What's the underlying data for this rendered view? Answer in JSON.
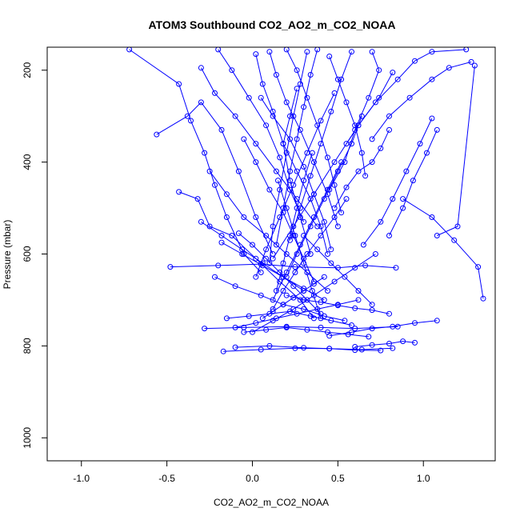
{
  "chart_data": {
    "type": "line",
    "title": "ATOM3 Southbound CO2_AO2_m_CO2_NOAA",
    "xlabel": "CO2_AO2_m_CO2_NOAA",
    "ylabel": "Pressure (mbar)",
    "xlim": [
      -1.2,
      1.42
    ],
    "ylim": [
      1050,
      150
    ],
    "y_reversed": true,
    "x_ticks": [
      -1.0,
      -0.5,
      0.0,
      0.5,
      1.0
    ],
    "x_tick_labels": [
      "-1.0",
      "-0.5",
      "0.0",
      "0.5",
      "1.0"
    ],
    "y_ticks": [
      200,
      400,
      600,
      800,
      1000
    ],
    "y_tick_labels": [
      "200",
      "400",
      "600",
      "800",
      "1000"
    ],
    "marker": "open-circle",
    "grid": false,
    "legend": "none",
    "colors": {
      "series": "#0000ff",
      "axis": "#000000",
      "background": "#ffffff"
    },
    "series": [
      {
        "x": [
          -0.72,
          -0.43,
          -0.36,
          -0.28,
          -0.22,
          -0.15,
          -0.05,
          0.05
        ],
        "y": [
          155,
          230,
          310,
          380,
          450,
          520,
          600,
          640
        ]
      },
      {
        "x": [
          -0.56,
          -0.38,
          -0.3,
          -0.18,
          -0.08,
          0.02,
          0.12
        ],
        "y": [
          340,
          300,
          270,
          330,
          420,
          520,
          600
        ]
      },
      {
        "x": [
          -0.43,
          -0.32,
          -0.25,
          -0.12,
          0.02,
          0.16,
          0.28,
          0.36
        ],
        "y": [
          465,
          480,
          540,
          560,
          610,
          660,
          700,
          740
        ]
      },
      {
        "x": [
          -0.48,
          -0.2,
          0.05,
          0.25,
          0.5,
          0.66,
          0.84
        ],
        "y": [
          628,
          625,
          622,
          628,
          630,
          625,
          630
        ]
      },
      {
        "x": [
          -0.28,
          -0.05,
          0.2,
          0.4,
          0.6,
          0.85
        ],
        "y": [
          762,
          760,
          758,
          760,
          762,
          758
        ]
      },
      {
        "x": [
          -0.17,
          0.05,
          0.25,
          0.45,
          0.64,
          0.82
        ],
        "y": [
          812,
          808,
          805,
          806,
          808,
          805
        ]
      },
      {
        "x": [
          -0.1,
          0.1,
          0.3,
          0.45,
          0.6,
          0.75
        ],
        "y": [
          803,
          800,
          804,
          806,
          809,
          810
        ]
      },
      {
        "x": [
          1.08,
          1.2,
          1.3
        ],
        "y": [
          560,
          540,
          190
        ]
      },
      {
        "x": [
          1.35,
          1.32,
          1.18,
          1.05,
          0.88
        ],
        "y": [
          697,
          628,
          570,
          520,
          480
        ]
      },
      {
        "x": [
          1.08,
          0.95,
          0.82,
          0.7,
          0.58,
          0.45
        ],
        "y": [
          745,
          750,
          758,
          762,
          770,
          778
        ]
      },
      {
        "x": [
          0.95,
          0.88,
          0.8,
          0.7,
          0.6
        ],
        "y": [
          793,
          790,
          795,
          798,
          802
        ]
      },
      {
        "x": [
          1.25,
          1.05,
          0.95,
          0.85,
          0.72,
          0.62,
          0.55
        ],
        "y": [
          155,
          160,
          180,
          220,
          270,
          320,
          360
        ]
      },
      {
        "x": [
          1.28,
          1.15,
          1.05,
          0.92,
          0.8,
          0.7
        ],
        "y": [
          182,
          195,
          220,
          260,
          300,
          350
        ]
      },
      {
        "x": [
          1.08,
          1.02,
          0.94,
          0.88,
          0.8
        ],
        "y": [
          330,
          380,
          440,
          500,
          560
        ]
      },
      {
        "x": [
          1.05,
          0.98,
          0.9,
          0.82,
          0.75,
          0.65
        ],
        "y": [
          305,
          360,
          420,
          480,
          530,
          580
        ]
      },
      {
        "x": [
          0.8,
          0.75,
          0.7,
          0.62,
          0.55,
          0.48
        ],
        "y": [
          330,
          370,
          400,
          420,
          455,
          500
        ]
      },
      {
        "x": [
          0.7,
          0.74,
          0.68,
          0.6,
          0.54,
          0.45
        ],
        "y": [
          160,
          200,
          260,
          330,
          400,
          460
        ]
      },
      {
        "x": [
          0.45,
          0.5,
          0.55,
          0.6,
          0.64,
          0.66
        ],
        "y": [
          170,
          220,
          270,
          320,
          380,
          430
        ]
      },
      {
        "x": [
          0.82,
          0.74,
          0.62,
          0.48,
          0.36,
          0.24,
          0.12
        ],
        "y": [
          205,
          260,
          320,
          400,
          470,
          540,
          610
        ]
      },
      {
        "x": [
          0.1,
          0.14,
          0.2,
          0.28,
          0.36,
          0.44,
          0.5
        ],
        "y": [
          160,
          210,
          270,
          330,
          400,
          470,
          540
        ]
      },
      {
        "x": [
          -0.2,
          -0.12,
          -0.02,
          0.08,
          0.16,
          0.22,
          0.3
        ],
        "y": [
          155,
          200,
          260,
          320,
          390,
          460,
          530
        ]
      },
      {
        "x": [
          0.02,
          0.06,
          0.12,
          0.18,
          0.22,
          0.28,
          0.34
        ],
        "y": [
          165,
          230,
          290,
          360,
          440,
          520,
          600
        ]
      },
      {
        "x": [
          0.32,
          0.28,
          0.24,
          0.2,
          0.16,
          0.12,
          0.1
        ],
        "y": [
          160,
          230,
          300,
          380,
          460,
          540,
          620
        ]
      },
      {
        "x": [
          0.2,
          0.26,
          0.32,
          0.38,
          0.44,
          0.48,
          0.52
        ],
        "y": [
          155,
          200,
          260,
          320,
          390,
          450,
          510
        ]
      },
      {
        "x": [
          0.38,
          0.34,
          0.3,
          0.26,
          0.22,
          0.18,
          0.14
        ],
        "y": [
          155,
          210,
          280,
          350,
          420,
          500,
          580
        ]
      },
      {
        "x": [
          -0.3,
          -0.22,
          -0.1,
          0.02,
          0.14,
          0.26,
          0.38
        ],
        "y": [
          195,
          250,
          300,
          360,
          420,
          480,
          540
        ]
      },
      {
        "x": [
          0.58,
          0.52,
          0.46,
          0.4,
          0.34,
          0.28,
          0.22
        ],
        "y": [
          160,
          220,
          290,
          360,
          430,
          500,
          570
        ]
      },
      {
        "x": [
          0.05,
          0.12,
          0.22,
          0.3,
          0.36,
          0.42,
          0.46
        ],
        "y": [
          260,
          300,
          350,
          410,
          470,
          530,
          590
        ]
      },
      {
        "x": [
          0.26,
          0.22,
          0.18,
          0.26,
          0.34,
          0.4,
          0.44
        ],
        "y": [
          240,
          300,
          360,
          420,
          480,
          540,
          600
        ]
      },
      {
        "x": [
          -0.05,
          0.02,
          0.1,
          0.18,
          0.24,
          0.3,
          0.36
        ],
        "y": [
          350,
          400,
          460,
          510,
          560,
          610,
          660
        ]
      },
      {
        "x": [
          -0.25,
          -0.15,
          -0.05,
          0.08,
          0.2,
          0.32,
          0.44
        ],
        "y": [
          420,
          470,
          520,
          560,
          600,
          640,
          680
        ]
      },
      {
        "x": [
          0.48,
          0.4,
          0.32,
          0.24,
          0.16,
          0.08,
          0.02
        ],
        "y": [
          250,
          310,
          380,
          450,
          520,
          590,
          650
        ]
      },
      {
        "x": [
          0.64,
          0.58,
          0.5,
          0.42,
          0.34,
          0.26,
          0.2
        ],
        "y": [
          300,
          360,
          420,
          480,
          540,
          600,
          650
        ]
      },
      {
        "x": [
          -0.08,
          0.0,
          0.08,
          0.16,
          0.24,
          0.32,
          0.4
        ],
        "y": [
          555,
          580,
          610,
          640,
          670,
          700,
          730
        ]
      },
      {
        "x": [
          0.55,
          0.48,
          0.4,
          0.32,
          0.25,
          0.18,
          0.12
        ],
        "y": [
          480,
          520,
          560,
          600,
          640,
          680,
          720
        ]
      },
      {
        "x": [
          -0.22,
          -0.1,
          0.05,
          0.18,
          0.3,
          0.42,
          0.54
        ],
        "y": [
          650,
          670,
          690,
          710,
          720,
          735,
          745
        ]
      },
      {
        "x": [
          0.72,
          0.6,
          0.48,
          0.36,
          0.24,
          0.12,
          0.0
        ],
        "y": [
          600,
          630,
          660,
          690,
          720,
          745,
          770
        ]
      },
      {
        "x": [
          -0.15,
          -0.02,
          0.1,
          0.22,
          0.34,
          0.46,
          0.58
        ],
        "y": [
          740,
          735,
          730,
          725,
          735,
          745,
          755
        ]
      },
      {
        "x": [
          0.62,
          0.5,
          0.38,
          0.26,
          0.14,
          0.02,
          -0.1
        ],
        "y": [
          700,
          710,
          720,
          730,
          740,
          750,
          760
        ]
      },
      {
        "x": [
          -0.05,
          0.08,
          0.2,
          0.32,
          0.44,
          0.56,
          0.68
        ],
        "y": [
          770,
          765,
          760,
          765,
          770,
          775,
          780
        ]
      },
      {
        "x": [
          0.2,
          0.3,
          0.4,
          0.5,
          0.6,
          0.7,
          0.8
        ],
        "y": [
          690,
          700,
          705,
          712,
          718,
          722,
          730
        ]
      },
      {
        "x": [
          0.42,
          0.36,
          0.3,
          0.24,
          0.18,
          0.12,
          0.06
        ],
        "y": [
          650,
          665,
          680,
          695,
          710,
          725,
          740
        ]
      },
      {
        "x": [
          -0.18,
          -0.06,
          0.06,
          0.18,
          0.3,
          0.42
        ],
        "y": [
          575,
          600,
          625,
          650,
          675,
          700
        ]
      },
      {
        "x": [
          0.3,
          0.38,
          0.46,
          0.54,
          0.62,
          0.7
        ],
        "y": [
          560,
          590,
          620,
          650,
          680,
          710
        ]
      },
      {
        "x": [
          0.15,
          0.2,
          0.25,
          0.3,
          0.35,
          0.4
        ],
        "y": [
          440,
          500,
          560,
          620,
          680,
          740
        ]
      },
      {
        "x": [
          0.35,
          0.3,
          0.26,
          0.22,
          0.18,
          0.14
        ],
        "y": [
          380,
          440,
          500,
          560,
          620,
          680
        ]
      },
      {
        "x": [
          -0.3,
          -0.18,
          -0.06,
          0.06,
          0.18,
          0.3
        ],
        "y": [
          530,
          560,
          590,
          620,
          650,
          680
        ]
      },
      {
        "x": [
          0.52,
          0.44,
          0.36,
          0.28,
          0.2,
          0.12
        ],
        "y": [
          400,
          460,
          520,
          580,
          640,
          700
        ]
      }
    ]
  }
}
